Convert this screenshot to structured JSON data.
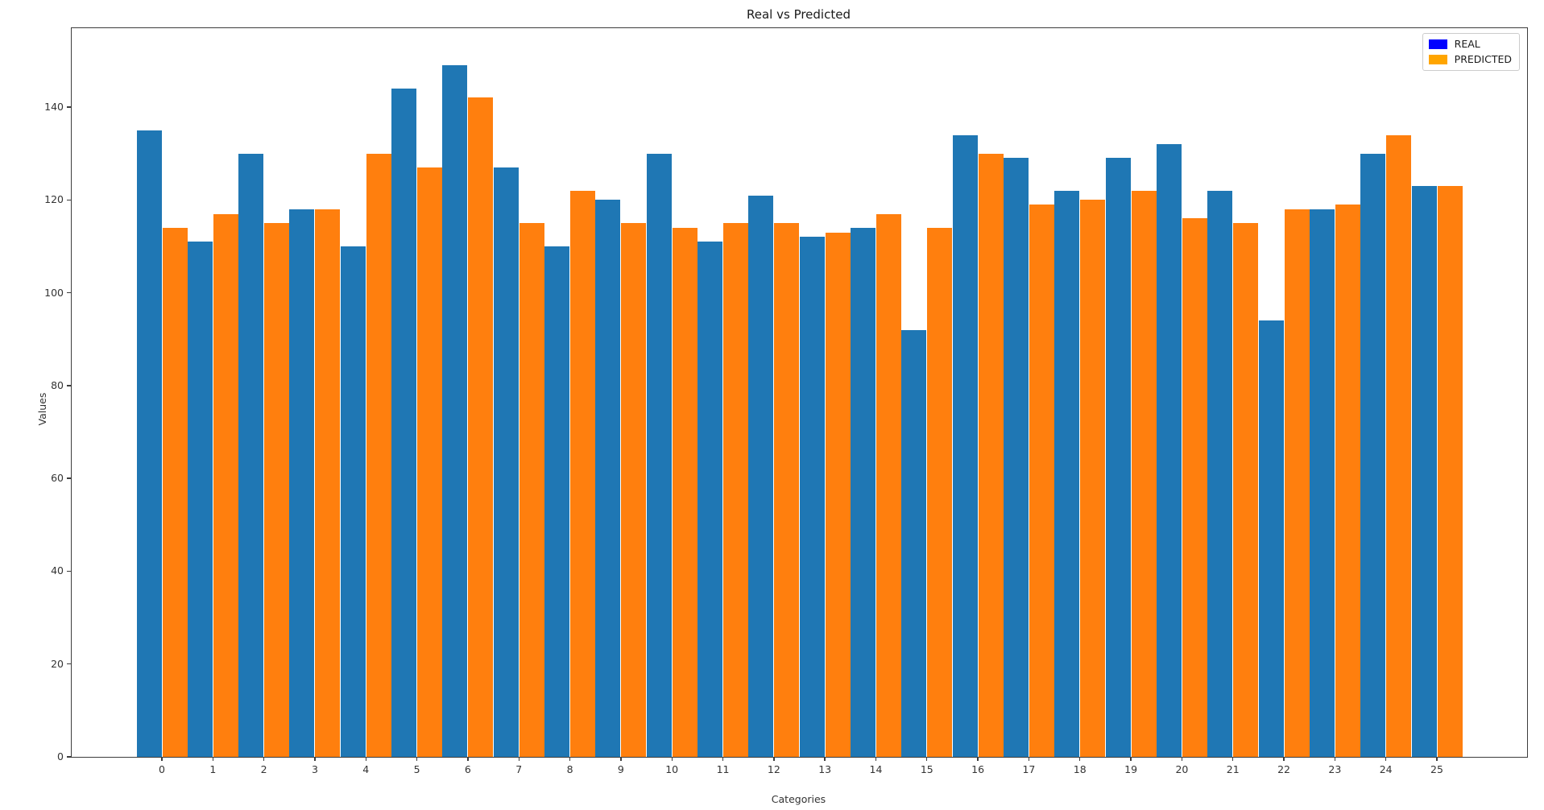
{
  "title": "Real vs Predicted",
  "chart_data": {
    "type": "bar",
    "title": "Real vs Predicted",
    "xlabel": "Categories",
    "ylabel": "Values",
    "categories": [
      "0",
      "1",
      "2",
      "3",
      "4",
      "5",
      "6",
      "7",
      "8",
      "9",
      "10",
      "11",
      "12",
      "13",
      "14",
      "15",
      "16",
      "17",
      "18",
      "19",
      "20",
      "21",
      "22",
      "23",
      "24",
      "25"
    ],
    "series": [
      {
        "name": "REAL",
        "bar_color": "#1f77b4",
        "legend_color": "#0000ff",
        "values": [
          135,
          111,
          130,
          118,
          110,
          144,
          149,
          127,
          110,
          120,
          130,
          111,
          121,
          112,
          114,
          92,
          134,
          129,
          122,
          129,
          132,
          122,
          94,
          118,
          130,
          123
        ]
      },
      {
        "name": "PREDICTED",
        "bar_color": "#ff7f0e",
        "legend_color": "#ffa500",
        "values": [
          114,
          117,
          115,
          118,
          130,
          127,
          142,
          115,
          122,
          115,
          114,
          115,
          115,
          113,
          117,
          114,
          130,
          119,
          120,
          122,
          116,
          115,
          118,
          119,
          134,
          123
        ]
      }
    ],
    "yticks": [
      0,
      20,
      40,
      60,
      80,
      100,
      120,
      140
    ],
    "ylim": [
      0,
      157
    ],
    "grid": false,
    "legend_position": "upper right"
  }
}
